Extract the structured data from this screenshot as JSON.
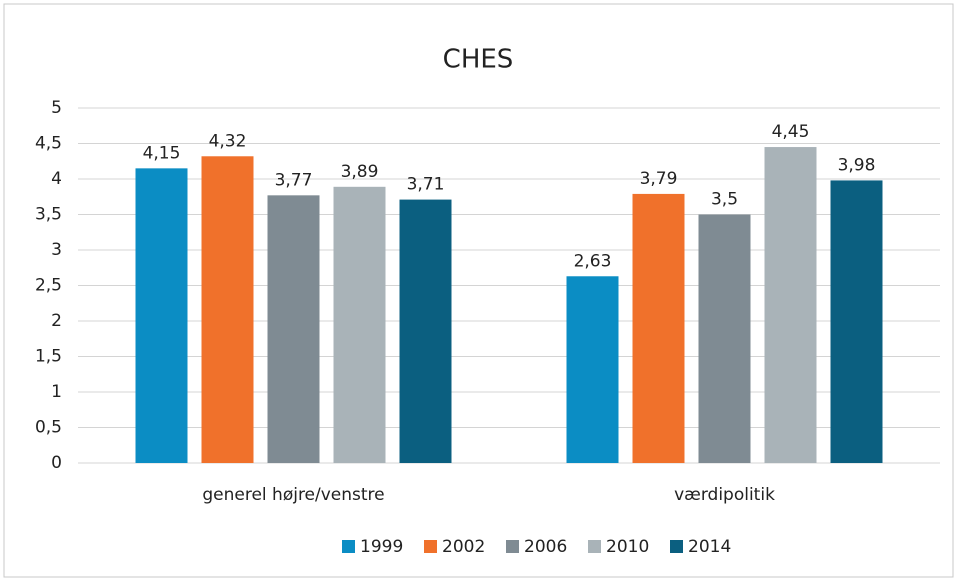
{
  "chart_data": {
    "type": "bar",
    "title": "CHES",
    "categories": [
      "generel højre/venstre",
      "værdipolitik"
    ],
    "series": [
      {
        "name": "1999",
        "color": "#0b8dc4",
        "values": [
          4.15,
          2.63
        ],
        "value_labels": [
          "4,15",
          "2,63"
        ]
      },
      {
        "name": "2002",
        "color": "#f0712b",
        "values": [
          4.32,
          3.79
        ],
        "value_labels": [
          "4,32",
          "3,79"
        ]
      },
      {
        "name": "2006",
        "color": "#7f8b93",
        "values": [
          3.77,
          3.5
        ],
        "value_labels": [
          "3,77",
          "3,5"
        ]
      },
      {
        "name": "2010",
        "color": "#a9b3b8",
        "values": [
          3.89,
          4.45
        ],
        "value_labels": [
          "3,89",
          "4,45"
        ]
      },
      {
        "name": "2014",
        "color": "#0b5f80",
        "values": [
          3.71,
          3.98
        ],
        "value_labels": [
          "3,71",
          "3,98"
        ]
      }
    ],
    "ylim": [
      0,
      5
    ],
    "yticks": [
      0,
      {
        "value": 0.5,
        "label": "0,5"
      },
      1,
      {
        "value": 1.5,
        "label": "1,5"
      },
      2,
      {
        "value": 2.5,
        "label": "2,5"
      },
      3,
      {
        "value": 3.5,
        "label": "3,5"
      },
      4,
      {
        "value": 4.5,
        "label": "4,5"
      },
      5
    ],
    "grid": true,
    "legend": "bottom"
  }
}
